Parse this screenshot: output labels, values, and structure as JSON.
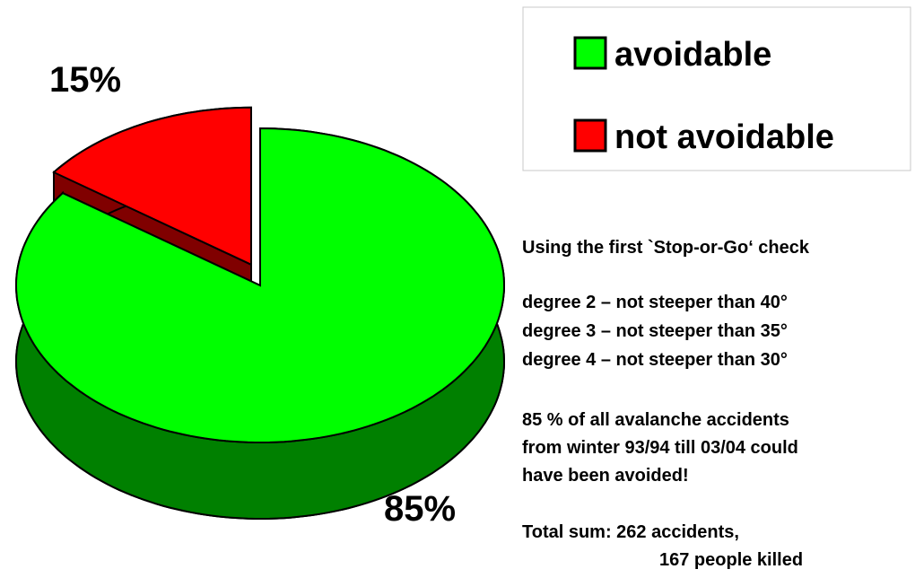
{
  "chart_data": {
    "type": "pie",
    "categories": [
      "avoidable",
      "not avoidable"
    ],
    "values": [
      85,
      15
    ],
    "value_labels": [
      "85%",
      "15%"
    ],
    "colors": [
      "#00ff00",
      "#ff0000"
    ],
    "side_colors": [
      "#008000",
      "#800000"
    ],
    "legend": "top-right",
    "annotations": [
      "Using the first `Stop-or-Go‘ check",
      "degree 2 – not steeper than 40°",
      "degree 3 – not steeper than 35°",
      "degree 4 – not steeper than 30°",
      "85 % of all avalanche accidents",
      "from winter 93/94 till 03/04 could",
      "have been avoided!",
      "Total sum: 262 accidents,",
      "167 people killed"
    ]
  }
}
